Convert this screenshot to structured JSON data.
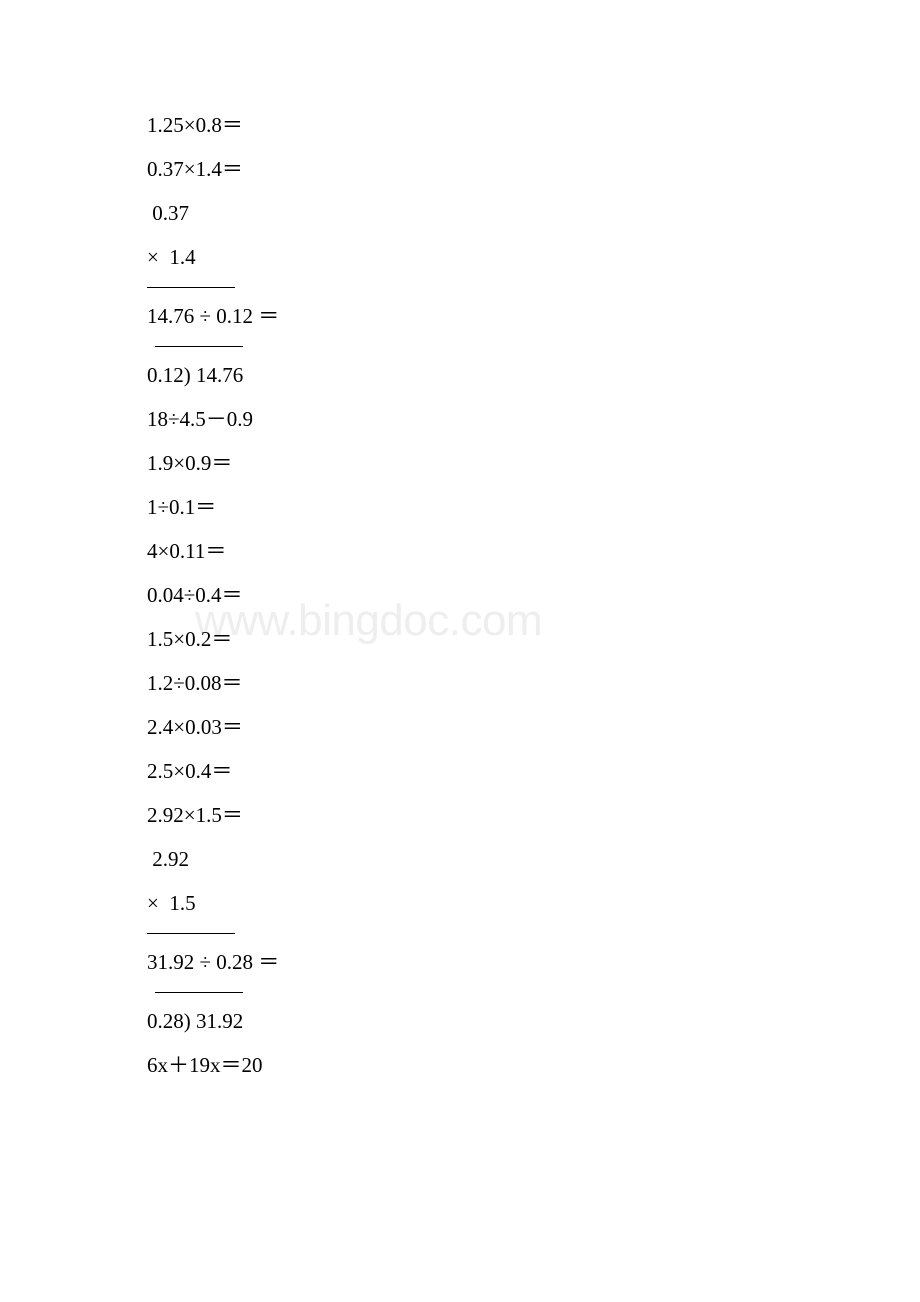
{
  "watermark": "www.bingdoc.com",
  "lines": {
    "l01": "1.25×0.8＝",
    "l02": "0.37×1.4＝",
    "l03": " 0.37",
    "l04": "×  1.4",
    "l05": "14.76 ÷ 0.12 ＝",
    "l06": "0.12) 14.76",
    "l07": "18÷4.5－0.9",
    "l08": "1.9×0.9＝",
    "l09": "1÷0.1＝",
    "l10": "4×0.11＝",
    "l11": "0.04÷0.4＝",
    "l12": "1.5×0.2＝",
    "l13": "1.2÷0.08＝",
    "l14": "2.4×0.03＝",
    "l15": "2.5×0.4＝",
    "l16": "2.92×1.5＝",
    "l17": " 2.92",
    "l18": "×  1.5",
    "l19": "31.92 ÷ 0.28 ＝",
    "l20": "0.28) 31.92",
    "l21": "6x＋19x＝20"
  },
  "style": {
    "background_color": "#ffffff",
    "text_color": "#000000",
    "watermark_color": "#eeeeee",
    "font_size": 21,
    "watermark_font_size": 44,
    "hr_width": 88
  }
}
